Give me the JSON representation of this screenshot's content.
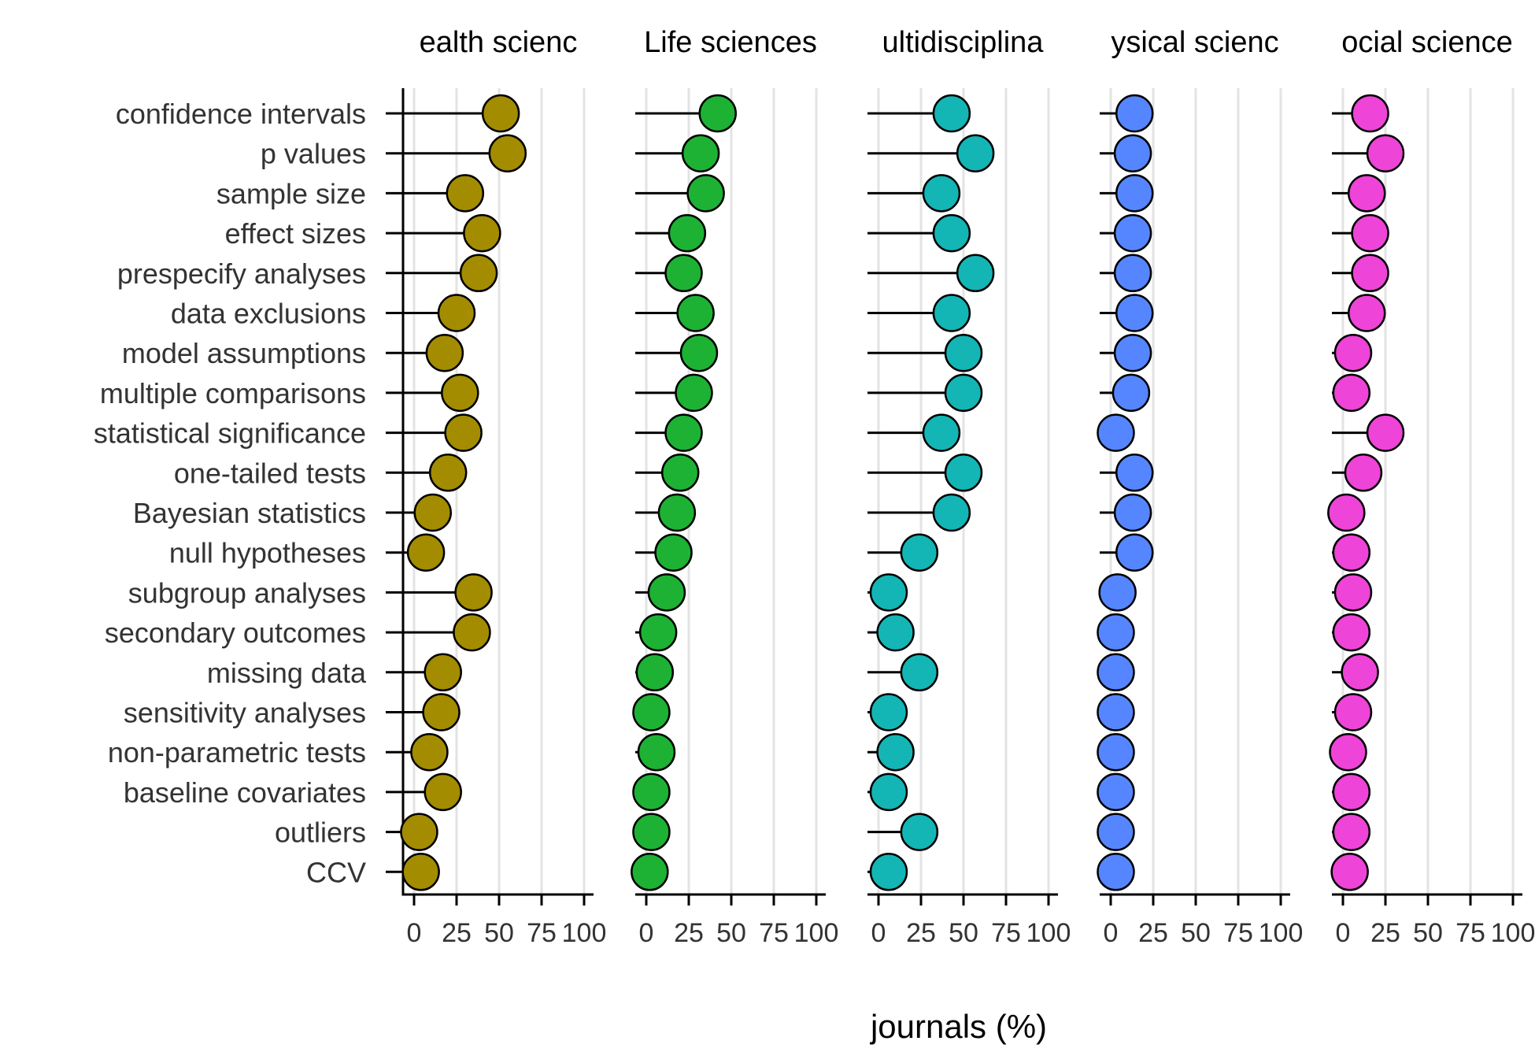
{
  "chart_data": {
    "type": "lollipop",
    "xlabel": "journals (%)",
    "xlim": [
      0,
      100
    ],
    "x_ticks": [
      "0",
      "25",
      "50",
      "75",
      "100"
    ],
    "categories": [
      "confidence intervals",
      "p values",
      "sample size",
      "effect sizes",
      "prespecify analyses",
      "data exclusions",
      "model assumptions",
      "multiple comparisons",
      "statistical significance",
      "one-tailed tests",
      "Bayesian statistics",
      "null hypotheses",
      "subgroup analyses",
      "secondary outcomes",
      "missing data",
      "sensitivity analyses",
      "non-parametric tests",
      "baseline covariates",
      "outliers",
      "CCV"
    ],
    "grid": "vertical major lines",
    "series": [
      {
        "name": "ealth scienc",
        "color": "#a38c00",
        "values": [
          51,
          55,
          30,
          40,
          38,
          25,
          18,
          27,
          29,
          20,
          11,
          7,
          35,
          34,
          17,
          16,
          9,
          17,
          3,
          4
        ]
      },
      {
        "name": "Life sciences",
        "color": "#1db234",
        "values": [
          42,
          32,
          35,
          24,
          22,
          29,
          31,
          28,
          22,
          20,
          18,
          16,
          12,
          7,
          5,
          3,
          6,
          3,
          3,
          2
        ]
      },
      {
        "name": "ultidisciplina",
        "color": "#14b5b5",
        "values": [
          43,
          57,
          37,
          43,
          57,
          43,
          50,
          50,
          37,
          50,
          43,
          24,
          6,
          10,
          24,
          6,
          10,
          6,
          24,
          6
        ]
      },
      {
        "name": "ysical scienc",
        "color": "#5586ff",
        "values": [
          14,
          13,
          14,
          13,
          13,
          14,
          13,
          12,
          3,
          14,
          13,
          14,
          4,
          3,
          3,
          3,
          3,
          3,
          3,
          3
        ]
      },
      {
        "name": "ocial science",
        "color": "#ee44d8",
        "values": [
          16,
          25,
          14,
          16,
          16,
          14,
          6,
          5,
          25,
          12,
          2,
          5,
          6,
          5,
          10,
          6,
          3,
          5,
          5,
          4
        ]
      }
    ]
  }
}
